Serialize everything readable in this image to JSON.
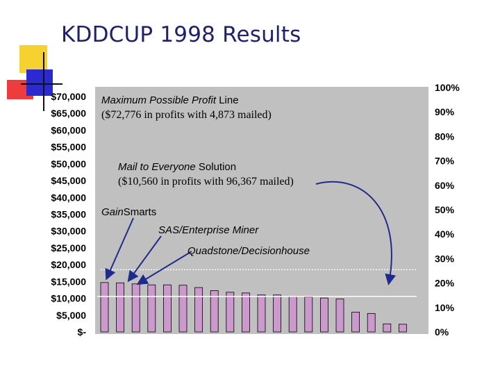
{
  "slide": {
    "title": "KDDCUP 1998 Results"
  },
  "annotations": {
    "max_profit_line_label_a": "Maximum Possible Profit",
    "max_profit_line_label_b": " Line",
    "max_profit_detail": "($72,776 in profits with 4,873 mailed)",
    "mail_everyone_label_a": "Mail to Everyone",
    "mail_everyone_label_b": " Solution",
    "mail_everyone_detail": "($10,560 in profits with 96,367 mailed)",
    "gainsmarts_a": "Gain",
    "gainsmarts_b": "Smarts",
    "sas_label": "SAS/Enterprise Miner",
    "quadstone_label": "Quadstone/Decisionhouse"
  },
  "colors": {
    "plot_bg": "#c0c0c0",
    "bar_fill": "#cc99cc",
    "bar_stroke": "#000000",
    "arrow": "#1f2a8a",
    "deco_yellow": "#f5d230",
    "deco_red": "#ee3b3b",
    "deco_blue": "#2a2ad0",
    "title": "#1f1f6e"
  },
  "chart_data": {
    "type": "bar",
    "values": [
      14700,
      14600,
      14300,
      14000,
      14000,
      13900,
      13200,
      12300,
      11800,
      11600,
      11000,
      11000,
      10500,
      10400,
      10100,
      9800,
      5900,
      5500,
      2400,
      2300
    ],
    "ylim": [
      0,
      70000
    ],
    "left_tick_labels": [
      "$70,000",
      "$65,000",
      "$60,000",
      "$55,000",
      "$50,000",
      "$45,000",
      "$40,000",
      "$35,000",
      "$30,000",
      "$25,000",
      "$20,000",
      "$15,000",
      "$10,000",
      "$5,000",
      "$-"
    ],
    "left_tick_values": [
      70000,
      65000,
      60000,
      55000,
      50000,
      45000,
      40000,
      35000,
      30000,
      25000,
      20000,
      15000,
      10000,
      5000,
      0
    ],
    "right_tick_labels": [
      "100%",
      "90%",
      "80%",
      "70%",
      "60%",
      "50%",
      "40%",
      "30%",
      "20%",
      "10%",
      "0%"
    ],
    "right_tick_values": [
      100,
      90,
      80,
      70,
      60,
      50,
      40,
      30,
      20,
      10,
      0
    ],
    "right_ylim": [
      0,
      100
    ],
    "reference_lines": [
      {
        "value": 72776
      },
      {
        "value": 10560
      }
    ],
    "dotted_line_value": 18500,
    "grid": false
  }
}
